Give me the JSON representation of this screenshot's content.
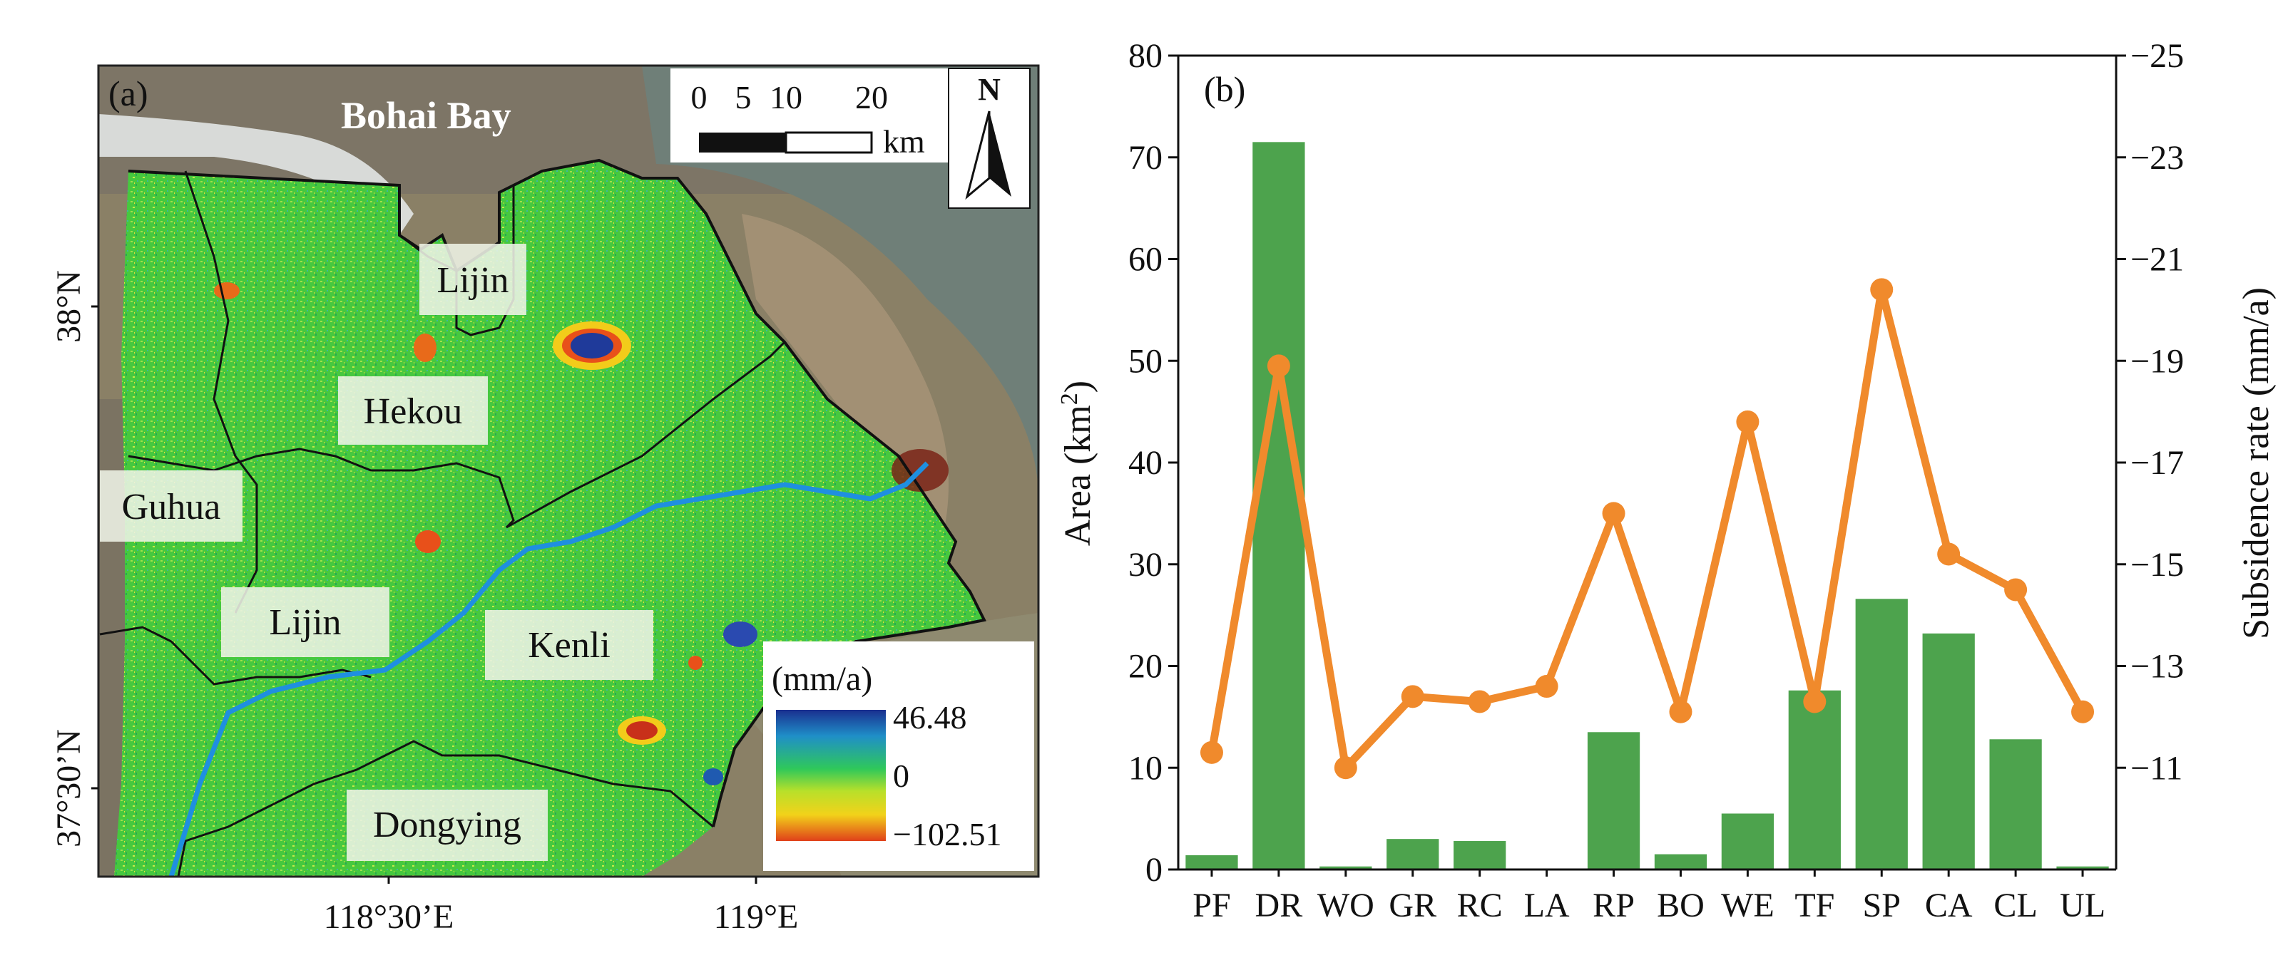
{
  "map": {
    "panel_label": "(a)",
    "bay_label": "Bohai Bay",
    "places": [
      "Lijin",
      "Hekou",
      "Guhua",
      "Lijin",
      "Kenli",
      "Dongying"
    ],
    "scalebar": {
      "ticks": [
        "0",
        "5",
        "10",
        "20"
      ],
      "unit": "km"
    },
    "north_label": "N",
    "lat_labels": [
      "38°N",
      "37°30’N"
    ],
    "lon_labels": [
      "118°30’E",
      "119°E"
    ],
    "legend": {
      "title": "(mm/a)",
      "max": "46.48",
      "mid": "0",
      "min": "−102.51"
    },
    "colors": {
      "river": "#1f8fe0",
      "boundary": "#111111",
      "deformation_base": "#3cc83c"
    }
  },
  "chart_data": {
    "type": "bar+line",
    "panel_label": "(b)",
    "categories": [
      "PF",
      "DR",
      "WO",
      "GR",
      "RC",
      "LA",
      "RP",
      "BO",
      "WE",
      "TF",
      "SP",
      "CA",
      "CL",
      "UL"
    ],
    "series": [
      {
        "name": "Area",
        "type": "bar",
        "axis": "left",
        "values": [
          1.4,
          71.5,
          0.3,
          3.0,
          2.8,
          0.1,
          13.5,
          1.5,
          5.5,
          17.6,
          26.6,
          23.2,
          12.8,
          0.3
        ],
        "color": "#4da34d"
      },
      {
        "name": "Subsidence rate",
        "type": "line",
        "axis": "right",
        "values": [
          -11.3,
          -18.9,
          -11.0,
          -12.4,
          -12.3,
          -12.6,
          -16.0,
          -12.1,
          -17.8,
          -12.3,
          -20.4,
          -15.2,
          -14.5,
          -12.1
        ],
        "color": "#f08a2c"
      }
    ],
    "ylabel_left": "Area (km",
    "ylabel_left_sup": "2",
    "ylabel_left_tail": ")",
    "ylabel_right": "Subsidence rate  (mm/a)",
    "ylim_left": [
      0,
      80
    ],
    "yticks_left": [
      "0",
      "10",
      "20",
      "30",
      "40",
      "50",
      "60",
      "70",
      "80"
    ],
    "ylim_right": [
      -9,
      -25
    ],
    "yticks_right": [
      "−11",
      "−13",
      "−15",
      "−17",
      "−19",
      "−21",
      "−23",
      "−25"
    ],
    "grid": false
  }
}
